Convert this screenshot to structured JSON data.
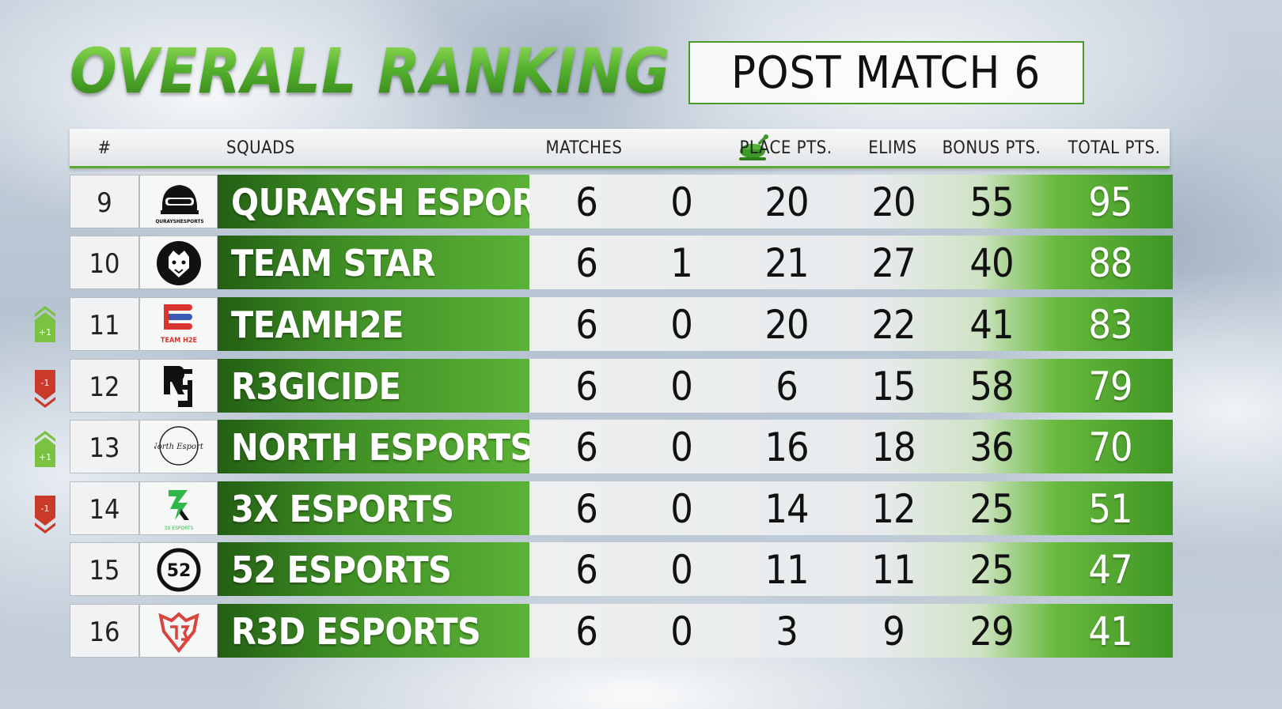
{
  "title": "OVERALL RANKING",
  "subtitle": "POST MATCH 6",
  "columns": {
    "rank": "#",
    "squads": "SQUADS",
    "matches": "MATCHES",
    "chicken_icon": "chicken-dinner-icon",
    "place_pts": "PLACE PTS.",
    "elims": "ELIMS",
    "bonus_pts": "BONUS PTS.",
    "total_pts": "TOTAL PTS."
  },
  "rows": [
    {
      "rank": "9",
      "squad": "QURAYSH ESPORTS",
      "logo": "helmet-logo",
      "logo_text": "QURAYSHESPORTS",
      "matches": "6",
      "wins": "0",
      "place": "20",
      "elims": "20",
      "bonus": "55",
      "total": "95",
      "change": null
    },
    {
      "rank": "10",
      "squad": "TEAM STAR",
      "logo": "lion-logo",
      "matches": "6",
      "wins": "1",
      "place": "21",
      "elims": "27",
      "bonus": "40",
      "total": "88",
      "change": null
    },
    {
      "rank": "11",
      "squad": "TEAMH2E",
      "logo": "h2e-logo",
      "logo_text": "TEAM H2E",
      "matches": "6",
      "wins": "0",
      "place": "20",
      "elims": "22",
      "bonus": "41",
      "total": "83",
      "change": "+1"
    },
    {
      "rank": "12",
      "squad": "R3GICIDE",
      "logo": "r3g-logo",
      "matches": "6",
      "wins": "0",
      "place": "6",
      "elims": "15",
      "bonus": "58",
      "total": "79",
      "change": "-1"
    },
    {
      "rank": "13",
      "squad": "NORTH ESPORTS",
      "logo": "north-logo",
      "logo_text": "North Esports",
      "matches": "6",
      "wins": "0",
      "place": "16",
      "elims": "18",
      "bonus": "36",
      "total": "70",
      "change": "+1"
    },
    {
      "rank": "14",
      "squad": "3X ESPORTS",
      "logo": "3x-logo",
      "logo_text": "3X ESPORTS",
      "matches": "6",
      "wins": "0",
      "place": "14",
      "elims": "12",
      "bonus": "25",
      "total": "51",
      "change": "-1"
    },
    {
      "rank": "15",
      "squad": "52 ESPORTS",
      "logo": "52-logo",
      "logo_text": "52",
      "matches": "6",
      "wins": "0",
      "place": "11",
      "elims": "11",
      "bonus": "25",
      "total": "47",
      "change": null
    },
    {
      "rank": "16",
      "squad": "R3D ESPORTS",
      "logo": "r3d-logo",
      "matches": "6",
      "wins": "0",
      "place": "3",
      "elims": "9",
      "bonus": "29",
      "total": "41",
      "change": null
    }
  ],
  "colors": {
    "accent_green": "#4a9a2a",
    "up_green": "#7cc242",
    "down_red": "#c93a2a",
    "h2e_red": "#d8352f",
    "h2e_blue": "#3a5ab5",
    "3x_green": "#2fb84a",
    "r3d_red": "#d9443c"
  }
}
